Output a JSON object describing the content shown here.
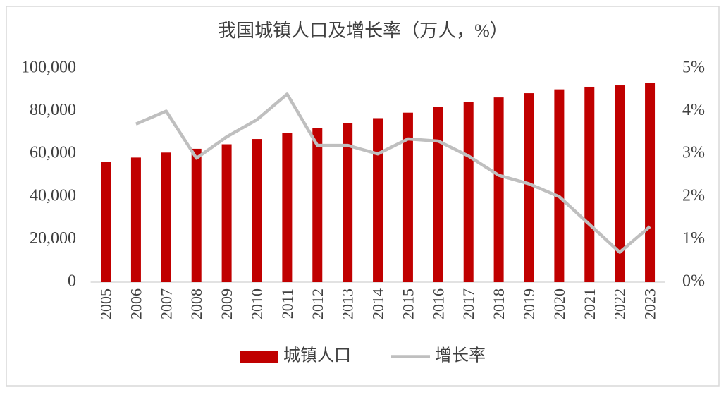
{
  "chart_data": {
    "type": "bar-line",
    "title": "我国城镇人口及增长率（万人，%）",
    "categories": [
      "2005",
      "2006",
      "2007",
      "2008",
      "2009",
      "2010",
      "2011",
      "2012",
      "2013",
      "2014",
      "2015",
      "2016",
      "2017",
      "2018",
      "2019",
      "2020",
      "2021",
      "2022",
      "2023"
    ],
    "series": [
      {
        "name": "城镇人口",
        "type": "bar",
        "color": "#c00000",
        "values": [
          56212,
          58288,
          60633,
          62403,
          64512,
          66978,
          69927,
          72175,
          74502,
          76738,
          79302,
          81924,
          84343,
          86433,
          88426,
          90220,
          91425,
          92071,
          93267
        ]
      },
      {
        "name": "增长率",
        "type": "line",
        "axis": "y2",
        "color": "#bfbfbf",
        "values": [
          null,
          3.7,
          4.0,
          2.9,
          3.4,
          3.8,
          4.4,
          3.2,
          3.2,
          3.0,
          3.35,
          3.3,
          2.95,
          2.5,
          2.3,
          2.0,
          1.35,
          0.7,
          1.3
        ]
      }
    ],
    "ylim": [
      0,
      100000
    ],
    "yticks": [
      0,
      {
        "value": 20000,
        "label": "20,000"
      },
      {
        "value": 40000,
        "label": "40,000"
      },
      {
        "value": 60000,
        "label": "60,000"
      },
      {
        "value": 80000,
        "label": "80,000"
      },
      {
        "value": 100000,
        "label": "100,000"
      }
    ],
    "y2lim": [
      0,
      5
    ],
    "y2ticks": [
      {
        "value": 0,
        "label": "0%"
      },
      {
        "value": 1,
        "label": "1%"
      },
      {
        "value": 2,
        "label": "2%"
      },
      {
        "value": 3,
        "label": "3%"
      },
      {
        "value": 4,
        "label": "4%"
      },
      {
        "value": 5,
        "label": "5%"
      }
    ],
    "legend": "bottom"
  }
}
